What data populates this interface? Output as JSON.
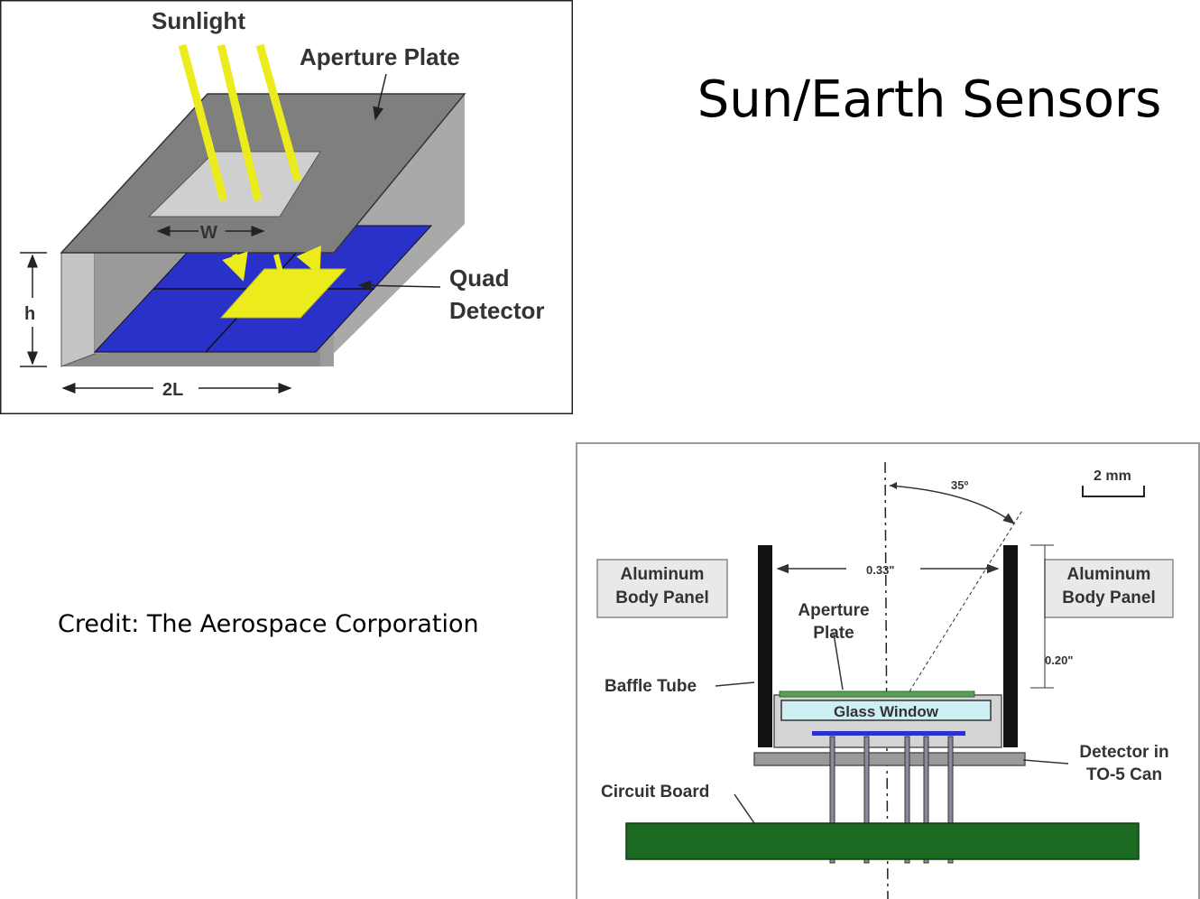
{
  "slide": {
    "title": "Sun/Earth Sensors",
    "credit": "Credit: The Aerospace Corporation"
  },
  "quad_detector_figure": {
    "labels": {
      "sunlight": "Sunlight",
      "aperture_plate": "Aperture Plate",
      "quad_line1": "Quad",
      "quad_line2": "Detector",
      "w": "W",
      "h": "h",
      "two_l": "2L"
    }
  },
  "sensor_cross_section": {
    "labels": {
      "aluminum_left_1": "Aluminum",
      "aluminum_left_2": "Body Panel",
      "aluminum_right_1": "Aluminum",
      "aluminum_right_2": "Body Panel",
      "aperture_1": "Aperture",
      "aperture_2": "Plate",
      "baffle_tube": "Baffle Tube",
      "glass_window": "Glass Window",
      "detector_1": "Detector in",
      "detector_2": "TO-5 Can",
      "circuit_board": "Circuit Board",
      "angle": "35º",
      "scale": "2 mm",
      "width_dim": "0.33\"",
      "height_dim": "0.20\""
    }
  },
  "colors": {
    "housing_gray": "#8a8a8a",
    "detector_blue": "#2a31c8",
    "sunlight_yellow": "#ecec1c",
    "board_green": "#1c6a22",
    "window_cyan": "#cdeef2"
  }
}
